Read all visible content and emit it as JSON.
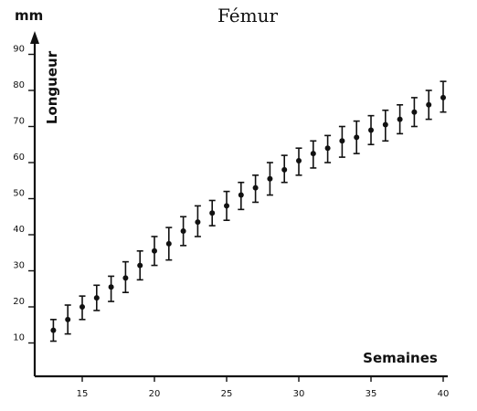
{
  "chart_data": {
    "type": "scatter",
    "title": "Fémur",
    "xlabel": "Semaines",
    "ylabel": "Longueur",
    "yunit": "mm",
    "xlim": [
      12,
      40.5
    ],
    "ylim": [
      0,
      95
    ],
    "xticks": [
      15,
      20,
      25,
      30,
      35,
      40
    ],
    "yticks": [
      10,
      20,
      30,
      40,
      50,
      60,
      70,
      80,
      90
    ],
    "grid": false,
    "legend": "none",
    "series": [
      {
        "error_bars": true,
        "points": [
          {
            "x": 13,
            "y": 13.5,
            "low": 10.5,
            "high": 16.5
          },
          {
            "x": 14,
            "y": 16.5,
            "low": 12.5,
            "high": 20.5
          },
          {
            "x": 15,
            "y": 20,
            "low": 16.5,
            "high": 23
          },
          {
            "x": 16,
            "y": 22.5,
            "low": 19,
            "high": 26
          },
          {
            "x": 17,
            "y": 25.5,
            "low": 21.5,
            "high": 28.5
          },
          {
            "x": 18,
            "y": 28,
            "low": 24,
            "high": 32.5
          },
          {
            "x": 19,
            "y": 31.5,
            "low": 27.5,
            "high": 35.5
          },
          {
            "x": 20,
            "y": 35.5,
            "low": 31.5,
            "high": 39.5
          },
          {
            "x": 21,
            "y": 37.5,
            "low": 33,
            "high": 42
          },
          {
            "x": 22,
            "y": 41,
            "low": 37,
            "high": 45
          },
          {
            "x": 23,
            "y": 43.5,
            "low": 39.5,
            "high": 48
          },
          {
            "x": 24,
            "y": 46,
            "low": 42.5,
            "high": 49.5
          },
          {
            "x": 25,
            "y": 48,
            "low": 44,
            "high": 52
          },
          {
            "x": 26,
            "y": 51,
            "low": 47,
            "high": 54.5
          },
          {
            "x": 27,
            "y": 53,
            "low": 49,
            "high": 56.5
          },
          {
            "x": 28,
            "y": 55.5,
            "low": 51,
            "high": 60
          },
          {
            "x": 29,
            "y": 58,
            "low": 54.5,
            "high": 62
          },
          {
            "x": 30,
            "y": 60.5,
            "low": 56.5,
            "high": 64
          },
          {
            "x": 31,
            "y": 62.5,
            "low": 58.5,
            "high": 66
          },
          {
            "x": 32,
            "y": 64,
            "low": 60,
            "high": 67.5
          },
          {
            "x": 33,
            "y": 66,
            "low": 61.5,
            "high": 70
          },
          {
            "x": 34,
            "y": 67,
            "low": 62.5,
            "high": 71.5
          },
          {
            "x": 35,
            "y": 69,
            "low": 65,
            "high": 73
          },
          {
            "x": 36,
            "y": 70.5,
            "low": 66,
            "high": 74.5
          },
          {
            "x": 37,
            "y": 72,
            "low": 68,
            "high": 76
          },
          {
            "x": 38,
            "y": 74,
            "low": 70,
            "high": 78
          },
          {
            "x": 39,
            "y": 76,
            "low": 72,
            "high": 80
          },
          {
            "x": 40,
            "y": 78,
            "low": 74,
            "high": 82.5
          }
        ]
      }
    ]
  }
}
